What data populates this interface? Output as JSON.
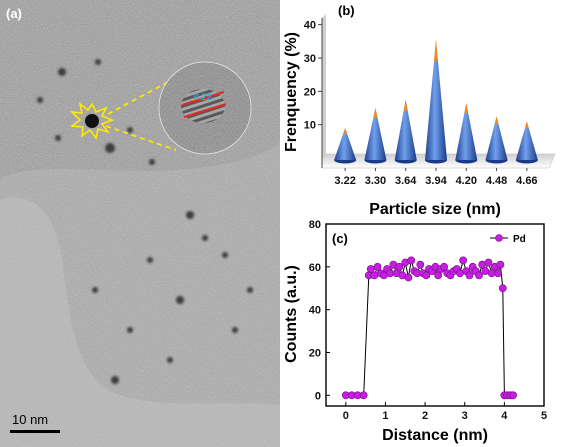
{
  "panel_a": {
    "label": "(a)",
    "scale_bar_text": "10 nm",
    "lattice_label": "0.22"
  },
  "chart_data": [
    {
      "panel_label": "(b)",
      "type": "bar",
      "style": "3d-cone",
      "categories": [
        "3.22",
        "3.30",
        "3.64",
        "3.94",
        "4.20",
        "4.48",
        "4.66"
      ],
      "values": [
        9,
        15,
        17.5,
        35.5,
        16.5,
        12.5,
        11
      ],
      "xlabel": "Particle size (nm)",
      "ylabel": "Frenquency (%)",
      "ylim": [
        0,
        42
      ],
      "yticks": [
        10,
        20,
        30,
        40
      ],
      "colors": {
        "cone": "#2f64c8",
        "tip": "#f08a1c"
      },
      "grid": false
    },
    {
      "panel_label": "(c)",
      "type": "line",
      "xlabel": "Distance (nm)",
      "ylabel": "Counts (a.u.)",
      "xlim": [
        -0.5,
        5
      ],
      "ylim": [
        -5,
        80
      ],
      "xticks": [
        0,
        1,
        2,
        3,
        4,
        5
      ],
      "yticks": [
        0,
        20,
        40,
        60,
        80
      ],
      "legend": "top-right",
      "grid": false,
      "series": [
        {
          "name": "Pd",
          "color": "#c51fe0",
          "points": [
            [
              0,
              0
            ],
            [
              0.15,
              0
            ],
            [
              0.3,
              0
            ],
            [
              0.45,
              0
            ],
            [
              0.58,
              56
            ],
            [
              0.63,
              59
            ],
            [
              0.72,
              56
            ],
            [
              0.8,
              60
            ],
            [
              0.88,
              57
            ],
            [
              0.96,
              56
            ],
            [
              1.04,
              59
            ],
            [
              1.12,
              57
            ],
            [
              1.2,
              61
            ],
            [
              1.28,
              57
            ],
            [
              1.35,
              60
            ],
            [
              1.43,
              56
            ],
            [
              1.5,
              62
            ],
            [
              1.58,
              55
            ],
            [
              1.65,
              63
            ],
            [
              1.73,
              58
            ],
            [
              1.8,
              57
            ],
            [
              1.88,
              61
            ],
            [
              1.95,
              57
            ],
            [
              2.03,
              56
            ],
            [
              2.1,
              59
            ],
            [
              2.18,
              58
            ],
            [
              2.26,
              60
            ],
            [
              2.33,
              56
            ],
            [
              2.4,
              59
            ],
            [
              2.48,
              60
            ],
            [
              2.56,
              57
            ],
            [
              2.64,
              56
            ],
            [
              2.72,
              58
            ],
            [
              2.8,
              59
            ],
            [
              2.88,
              57
            ],
            [
              2.96,
              63
            ],
            [
              3.04,
              58
            ],
            [
              3.12,
              56
            ],
            [
              3.2,
              60
            ],
            [
              3.28,
              58
            ],
            [
              3.36,
              56
            ],
            [
              3.44,
              61
            ],
            [
              3.52,
              58
            ],
            [
              3.6,
              62
            ],
            [
              3.68,
              57
            ],
            [
              3.76,
              60
            ],
            [
              3.84,
              57
            ],
            [
              3.9,
              61
            ],
            [
              3.96,
              50
            ],
            [
              4.0,
              0
            ],
            [
              4.07,
              0
            ],
            [
              4.15,
              0
            ],
            [
              4.22,
              0
            ]
          ]
        }
      ]
    }
  ]
}
